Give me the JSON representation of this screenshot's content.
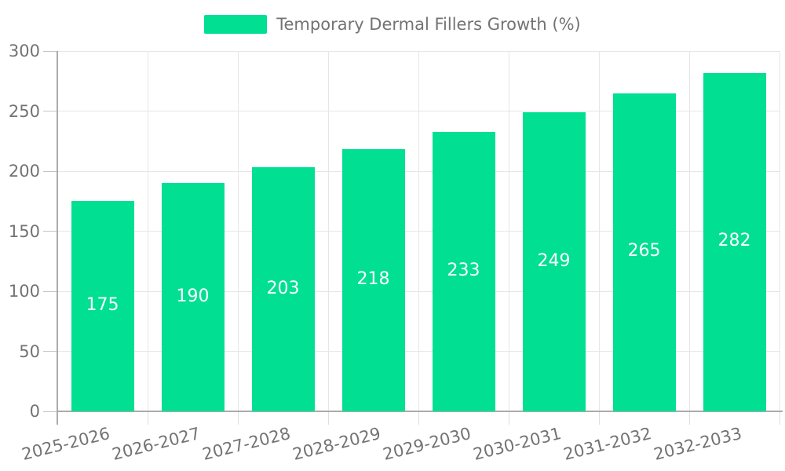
{
  "chart_data": {
    "type": "bar",
    "categories": [
      "2025-2026",
      "2026-2027",
      "2027-2028",
      "2028-2029",
      "2029-2030",
      "2030-2031",
      "2031-2032",
      "2032-2033"
    ],
    "series": [
      {
        "name": "Temporary Dermal Fillers Growth (%)",
        "values": [
          175,
          190,
          203,
          218,
          233,
          249,
          265,
          282
        ]
      }
    ],
    "ylabel": "",
    "xlabel": "",
    "ylim": [
      0,
      300
    ],
    "ytick_step": 50,
    "yticks": [
      "0",
      "50",
      "100",
      "150",
      "200",
      "250",
      "300"
    ],
    "legend_position": "top",
    "grid": true,
    "bar_labels_shown": true,
    "colors": {
      "bar": "#00df92",
      "bar_label": "#ffffff",
      "axis_text": "#737373",
      "grid_line": "#e6e6e6",
      "axis_line": "#ababab",
      "y_tick_mark": "#c4c4c4",
      "x_tick_mark": "#dedede",
      "background": "#ffffff"
    }
  }
}
